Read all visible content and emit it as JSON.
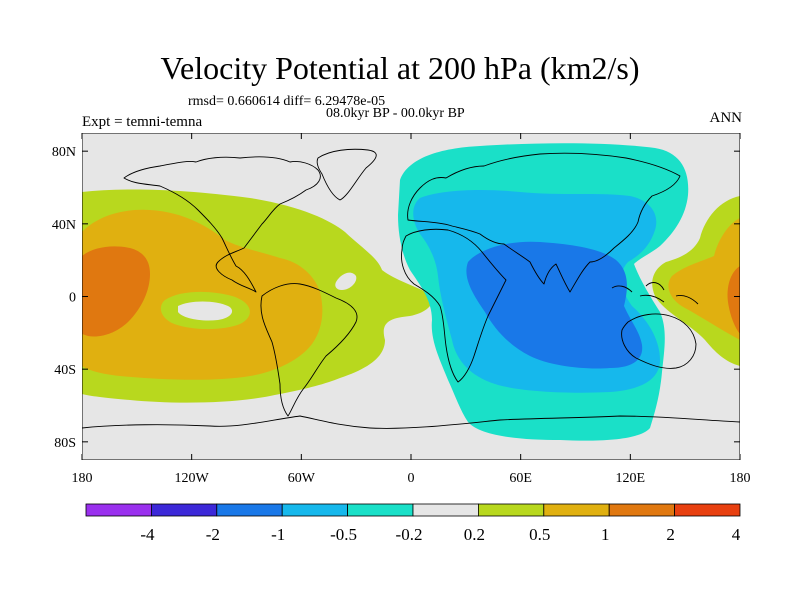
{
  "header": {
    "title": "Velocity Potential at 200 hPa (km2/s)",
    "stats": "rmsd= 0.660614 diff= 6.29478e-05",
    "period": "08.0kyr BP - 00.0kyr BP",
    "experiment": "Expt = temni-temna",
    "season": "ANN"
  },
  "axes": {
    "lat_ticks": [
      {
        "value": 80,
        "label": "80N"
      },
      {
        "value": 40,
        "label": "40N"
      },
      {
        "value": 0,
        "label": "0"
      },
      {
        "value": -40,
        "label": "40S"
      },
      {
        "value": -80,
        "label": "80S"
      }
    ],
    "lon_ticks": [
      {
        "value": -180,
        "label": "180"
      },
      {
        "value": -120,
        "label": "120W"
      },
      {
        "value": -60,
        "label": "60W"
      },
      {
        "value": 0,
        "label": "0"
      },
      {
        "value": 60,
        "label": "60E"
      },
      {
        "value": 120,
        "label": "120E"
      },
      {
        "value": 180,
        "label": "180"
      }
    ],
    "lon_range": [
      -180,
      180
    ],
    "lat_range": [
      -90,
      90
    ]
  },
  "colorbar": {
    "colors": [
      "#9a30ee",
      "#3c28d8",
      "#1978e8",
      "#16b8ec",
      "#1ae0c8",
      "#e6e6e6",
      "#b8d81e",
      "#e0b010",
      "#e07810",
      "#e84010"
    ],
    "labels": [
      "-4",
      "-2",
      "-1",
      "-0.5",
      "-0.2",
      "0.2",
      "0.5",
      "1",
      "2",
      "4"
    ]
  }
}
